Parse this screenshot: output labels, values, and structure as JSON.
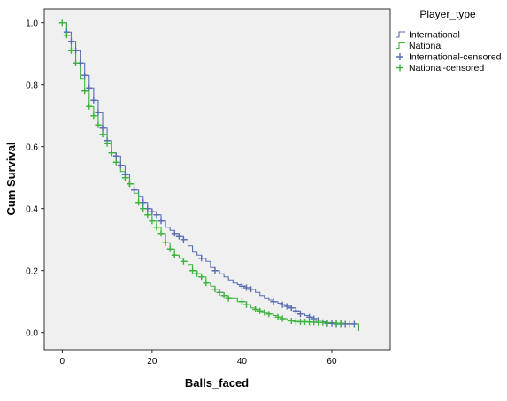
{
  "chart_data": {
    "type": "line",
    "title": "",
    "xlabel": "Balls_faced",
    "ylabel": "Cum Survival",
    "xlim": [
      -4,
      73
    ],
    "ylim": [
      -0.055,
      1.045
    ],
    "x_ticks": [
      0,
      20,
      40,
      60
    ],
    "y_ticks": [
      0.0,
      0.2,
      0.4,
      0.6,
      0.8,
      1.0
    ],
    "x_tick_labels": [
      "0",
      "20",
      "40",
      "60"
    ],
    "y_tick_labels": [
      "0.0",
      "0.2",
      "0.4",
      "0.6",
      "0.8",
      "1.0"
    ],
    "grid": false,
    "plot_background": "#f0f0f0",
    "legend": {
      "title": "Player_type",
      "placement": "right",
      "entries": [
        "International",
        "National",
        "International-censored",
        "National-censored"
      ]
    },
    "series": [
      {
        "name": "International",
        "color": "#5a6eb4",
        "step": true,
        "x": [
          0,
          1,
          2,
          3,
          4,
          5,
          6,
          7,
          8,
          9,
          10,
          11,
          12,
          13,
          14,
          15,
          16,
          17,
          18,
          19,
          20,
          21,
          22,
          23,
          24,
          25,
          26,
          27,
          28,
          29,
          30,
          31,
          32,
          33,
          34,
          35,
          36,
          37,
          38,
          39,
          40,
          41,
          42,
          43,
          44,
          45,
          46,
          47,
          48,
          49,
          50,
          51,
          52,
          53,
          54,
          55,
          56,
          57,
          58,
          59,
          60,
          61,
          62,
          63,
          64,
          65
        ],
        "y": [
          1.0,
          0.97,
          0.94,
          0.91,
          0.87,
          0.83,
          0.79,
          0.75,
          0.71,
          0.66,
          0.62,
          0.58,
          0.57,
          0.54,
          0.51,
          0.48,
          0.46,
          0.44,
          0.42,
          0.4,
          0.39,
          0.38,
          0.36,
          0.34,
          0.33,
          0.32,
          0.31,
          0.3,
          0.28,
          0.26,
          0.25,
          0.24,
          0.23,
          0.21,
          0.2,
          0.19,
          0.18,
          0.17,
          0.16,
          0.155,
          0.15,
          0.145,
          0.14,
          0.13,
          0.12,
          0.11,
          0.105,
          0.1,
          0.095,
          0.09,
          0.085,
          0.08,
          0.07,
          0.06,
          0.055,
          0.05,
          0.045,
          0.04,
          0.035,
          0.03,
          0.03,
          0.028,
          0.028,
          0.028,
          0.028,
          0.028
        ],
        "censored_x": [
          1,
          2,
          3,
          4,
          5,
          6,
          7,
          8,
          9,
          10,
          11,
          12,
          13,
          14,
          15,
          16,
          18,
          19,
          20,
          21,
          22,
          25,
          26,
          27,
          31,
          34,
          40,
          41,
          42,
          47,
          49,
          50,
          51,
          52,
          53,
          55,
          56,
          57,
          59,
          60,
          61,
          62,
          63,
          64,
          65
        ],
        "censored_y": [
          0.97,
          0.94,
          0.91,
          0.87,
          0.83,
          0.79,
          0.75,
          0.71,
          0.66,
          0.62,
          0.58,
          0.57,
          0.54,
          0.51,
          0.48,
          0.46,
          0.42,
          0.4,
          0.39,
          0.38,
          0.36,
          0.32,
          0.31,
          0.3,
          0.24,
          0.2,
          0.15,
          0.145,
          0.14,
          0.1,
          0.09,
          0.085,
          0.08,
          0.07,
          0.06,
          0.05,
          0.045,
          0.04,
          0.03,
          0.03,
          0.028,
          0.028,
          0.028,
          0.028,
          0.028
        ]
      },
      {
        "name": "National",
        "color": "#3cb43c",
        "step": true,
        "x": [
          0,
          1,
          2,
          3,
          4,
          5,
          6,
          7,
          8,
          9,
          10,
          11,
          12,
          13,
          14,
          15,
          16,
          17,
          18,
          19,
          20,
          21,
          22,
          23,
          24,
          25,
          26,
          27,
          28,
          29,
          30,
          31,
          32,
          33,
          34,
          35,
          36,
          37,
          38,
          39,
          40,
          41,
          42,
          43,
          44,
          45,
          46,
          47,
          48,
          49,
          50,
          51,
          52,
          53,
          54,
          55,
          56,
          57,
          58,
          59,
          60,
          61,
          62,
          63,
          64,
          65,
          66
        ],
        "y": [
          1.0,
          0.96,
          0.91,
          0.87,
          0.82,
          0.78,
          0.73,
          0.7,
          0.67,
          0.64,
          0.61,
          0.58,
          0.55,
          0.52,
          0.5,
          0.48,
          0.45,
          0.42,
          0.4,
          0.38,
          0.36,
          0.34,
          0.32,
          0.29,
          0.27,
          0.25,
          0.24,
          0.23,
          0.22,
          0.2,
          0.19,
          0.18,
          0.16,
          0.15,
          0.14,
          0.13,
          0.12,
          0.11,
          0.11,
          0.1,
          0.1,
          0.09,
          0.08,
          0.075,
          0.07,
          0.065,
          0.06,
          0.055,
          0.05,
          0.045,
          0.04,
          0.038,
          0.036,
          0.035,
          0.035,
          0.034,
          0.034,
          0.033,
          0.033,
          0.032,
          0.032,
          0.03,
          0.03,
          0.028,
          0.028,
          0.028,
          0.005
        ],
        "censored_x": [
          0,
          1,
          2,
          3,
          5,
          6,
          7,
          8,
          9,
          10,
          11,
          12,
          14,
          15,
          17,
          18,
          19,
          20,
          21,
          22,
          23,
          24,
          25,
          27,
          29,
          30,
          31,
          32,
          34,
          35,
          36,
          37,
          40,
          41,
          43,
          44,
          45,
          46,
          48,
          49,
          51,
          52,
          53,
          54,
          55,
          56,
          57,
          58,
          59,
          61,
          62
        ],
        "censored_y": [
          1.0,
          0.96,
          0.91,
          0.87,
          0.78,
          0.73,
          0.7,
          0.67,
          0.64,
          0.61,
          0.58,
          0.55,
          0.5,
          0.48,
          0.42,
          0.4,
          0.38,
          0.36,
          0.34,
          0.32,
          0.29,
          0.27,
          0.25,
          0.23,
          0.2,
          0.19,
          0.18,
          0.16,
          0.14,
          0.13,
          0.12,
          0.11,
          0.1,
          0.09,
          0.075,
          0.07,
          0.065,
          0.06,
          0.05,
          0.045,
          0.038,
          0.036,
          0.035,
          0.035,
          0.034,
          0.034,
          0.033,
          0.033,
          0.032,
          0.03,
          0.03
        ]
      }
    ]
  }
}
